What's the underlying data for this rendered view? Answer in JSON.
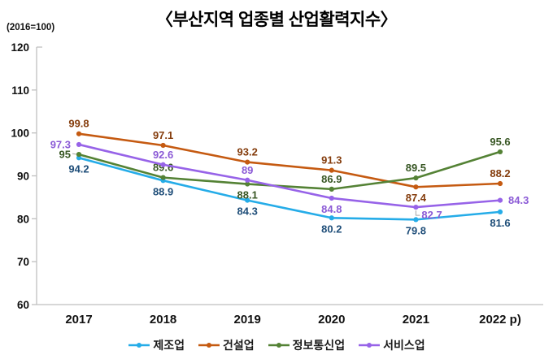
{
  "title": "〈부산지역 업종별 산업활력지수〉",
  "unit_label": "(2016=100)",
  "chart_data": {
    "type": "line",
    "title": "부산지역 업종별 산업활력지수",
    "categories": [
      "2017",
      "2018",
      "2019",
      "2020",
      "2021",
      "2022 p)"
    ],
    "series": [
      {
        "name": "제조업",
        "name_en": "manufacturing",
        "color": "#25ACE8",
        "label_color": "#1F4E79",
        "values": [
          94.2,
          88.9,
          84.3,
          80.2,
          79.8,
          81.6
        ],
        "label_pos": [
          "below",
          "below",
          "below",
          "below",
          "below",
          "below"
        ]
      },
      {
        "name": "건설업",
        "name_en": "construction",
        "color": "#C55A11",
        "label_color": "#843C0C",
        "values": [
          99.8,
          97.1,
          93.2,
          91.3,
          87.4,
          88.2
        ],
        "label_pos": [
          "above",
          "above",
          "above",
          "above",
          "below",
          "above"
        ]
      },
      {
        "name": "정보통신업",
        "name_en": "information-communication",
        "color": "#548235",
        "label_color": "#375623",
        "values": [
          95,
          89.6,
          88.1,
          86.9,
          89.5,
          95.6
        ],
        "label_pos": [
          "left+leader",
          "above",
          "below",
          "above",
          "above",
          "above"
        ]
      },
      {
        "name": "서비스업",
        "name_en": "services",
        "color": "#9763E8",
        "label_color": "#8B5AD6",
        "values": [
          97.3,
          92.6,
          89,
          84.8,
          82.7,
          84.3
        ],
        "label_pos": [
          "left",
          "above",
          "above",
          "below",
          "belowright+leader",
          "right"
        ]
      }
    ],
    "ylim": [
      60,
      120
    ],
    "yticks": [
      60,
      70,
      80,
      90,
      100,
      110,
      120
    ],
    "grid": false,
    "legend_position": "bottom",
    "axis_color": "#BFBFBF",
    "leader_color": "#A6A6A6"
  }
}
